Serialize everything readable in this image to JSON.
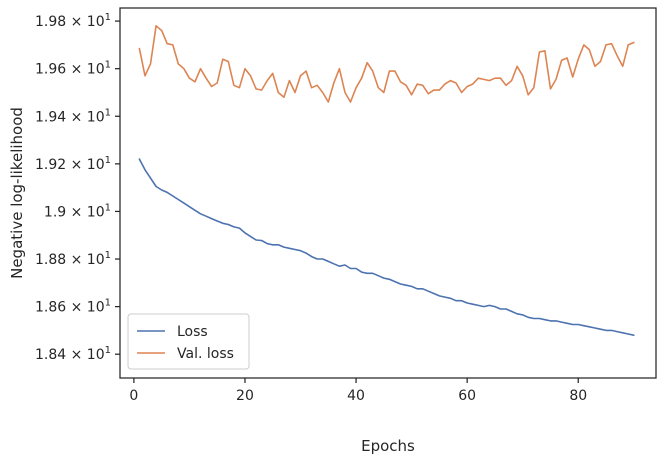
{
  "chart_data": {
    "type": "line",
    "title": "",
    "xlabel": "Epochs",
    "ylabel": "Negative log-likelihood",
    "xlim": [
      -2.5,
      94
    ],
    "ylim": [
      18.3,
      19.855
    ],
    "x_ticks": [
      0,
      20,
      40,
      60,
      80
    ],
    "x_tick_labels": [
      "0",
      "20",
      "40",
      "60",
      "80"
    ],
    "y_ticks": [
      18.4,
      18.6,
      18.8,
      19.0,
      19.2,
      19.4,
      19.6,
      19.8
    ],
    "y_tick_labels": [
      {
        "mantissa": "1.84",
        "exp": "1"
      },
      {
        "mantissa": "1.86",
        "exp": "1"
      },
      {
        "mantissa": "1.88",
        "exp": "1"
      },
      {
        "mantissa": "1.9",
        "exp": "1"
      },
      {
        "mantissa": "1.92",
        "exp": "1"
      },
      {
        "mantissa": "1.94",
        "exp": "1"
      },
      {
        "mantissa": "1.96",
        "exp": "1"
      },
      {
        "mantissa": "1.98",
        "exp": "1"
      }
    ],
    "y_tick_times": "×",
    "y_tick_base": "10",
    "grid": false,
    "legend_position": "lower-left",
    "series": [
      {
        "name": "Loss",
        "color": "#4c72b0",
        "x": [
          1,
          2,
          3,
          4,
          5,
          6,
          7,
          8,
          9,
          10,
          11,
          12,
          13,
          14,
          15,
          16,
          17,
          18,
          19,
          20,
          21,
          22,
          23,
          24,
          25,
          26,
          27,
          28,
          29,
          30,
          31,
          32,
          33,
          34,
          35,
          36,
          37,
          38,
          39,
          40,
          41,
          42,
          43,
          44,
          45,
          46,
          47,
          48,
          49,
          50,
          51,
          52,
          53,
          54,
          55,
          56,
          57,
          58,
          59,
          60,
          61,
          62,
          63,
          64,
          65,
          66,
          67,
          68,
          69,
          70,
          71,
          72,
          73,
          74,
          75,
          76,
          77,
          78,
          79,
          80,
          81,
          82,
          83,
          84,
          85,
          86,
          87,
          88,
          89,
          90
        ],
        "y": [
          19.22,
          19.175,
          19.14,
          19.105,
          19.09,
          19.08,
          19.065,
          19.05,
          19.035,
          19.02,
          19.005,
          18.99,
          18.98,
          18.97,
          18.96,
          18.95,
          18.945,
          18.935,
          18.93,
          18.91,
          18.895,
          18.88,
          18.878,
          18.865,
          18.86,
          18.86,
          18.85,
          18.845,
          18.84,
          18.835,
          18.825,
          18.81,
          18.8,
          18.8,
          18.79,
          18.78,
          18.77,
          18.775,
          18.76,
          18.76,
          18.745,
          18.74,
          18.74,
          18.73,
          18.72,
          18.715,
          18.705,
          18.695,
          18.69,
          18.685,
          18.675,
          18.675,
          18.665,
          18.655,
          18.645,
          18.64,
          18.635,
          18.625,
          18.625,
          18.615,
          18.61,
          18.605,
          18.6,
          18.605,
          18.6,
          18.59,
          18.59,
          18.58,
          18.57,
          18.565,
          18.555,
          18.55,
          18.55,
          18.545,
          18.54,
          18.54,
          18.535,
          18.53,
          18.525,
          18.525,
          18.52,
          18.515,
          18.51,
          18.505,
          18.5,
          18.5,
          18.495,
          18.49,
          18.485,
          18.48
        ]
      },
      {
        "name": "Val. loss",
        "color": "#dd8452",
        "x": [
          1,
          2,
          3,
          4,
          5,
          6,
          7,
          8,
          9,
          10,
          11,
          12,
          13,
          14,
          15,
          16,
          17,
          18,
          19,
          20,
          21,
          22,
          23,
          24,
          25,
          26,
          27,
          28,
          29,
          30,
          31,
          32,
          33,
          34,
          35,
          36,
          37,
          38,
          39,
          40,
          41,
          42,
          43,
          44,
          45,
          46,
          47,
          48,
          49,
          50,
          51,
          52,
          53,
          54,
          55,
          56,
          57,
          58,
          59,
          60,
          61,
          62,
          63,
          64,
          65,
          66,
          67,
          68,
          69,
          70,
          71,
          72,
          73,
          74,
          75,
          76,
          77,
          78,
          79,
          80,
          81,
          82,
          83,
          84,
          85,
          86,
          87,
          88,
          89,
          90
        ],
        "y": [
          19.685,
          19.57,
          19.62,
          19.78,
          19.76,
          19.705,
          19.7,
          19.62,
          19.6,
          19.56,
          19.545,
          19.6,
          19.56,
          19.525,
          19.54,
          19.64,
          19.63,
          19.53,
          19.52,
          19.6,
          19.57,
          19.515,
          19.51,
          19.55,
          19.58,
          19.5,
          19.48,
          19.55,
          19.5,
          19.57,
          19.59,
          19.52,
          19.53,
          19.5,
          19.46,
          19.54,
          19.6,
          19.5,
          19.46,
          19.52,
          19.56,
          19.625,
          19.59,
          19.52,
          19.5,
          19.59,
          19.59,
          19.545,
          19.53,
          19.49,
          19.535,
          19.53,
          19.495,
          19.51,
          19.51,
          19.535,
          19.55,
          19.54,
          19.5,
          19.525,
          19.535,
          19.56,
          19.555,
          19.55,
          19.56,
          19.56,
          19.53,
          19.55,
          19.61,
          19.57,
          19.49,
          19.52,
          19.67,
          19.675,
          19.515,
          19.555,
          19.635,
          19.645,
          19.565,
          19.64,
          19.7,
          19.68,
          19.61,
          19.63,
          19.7,
          19.705,
          19.655,
          19.61,
          19.7,
          19.71
        ]
      }
    ]
  }
}
